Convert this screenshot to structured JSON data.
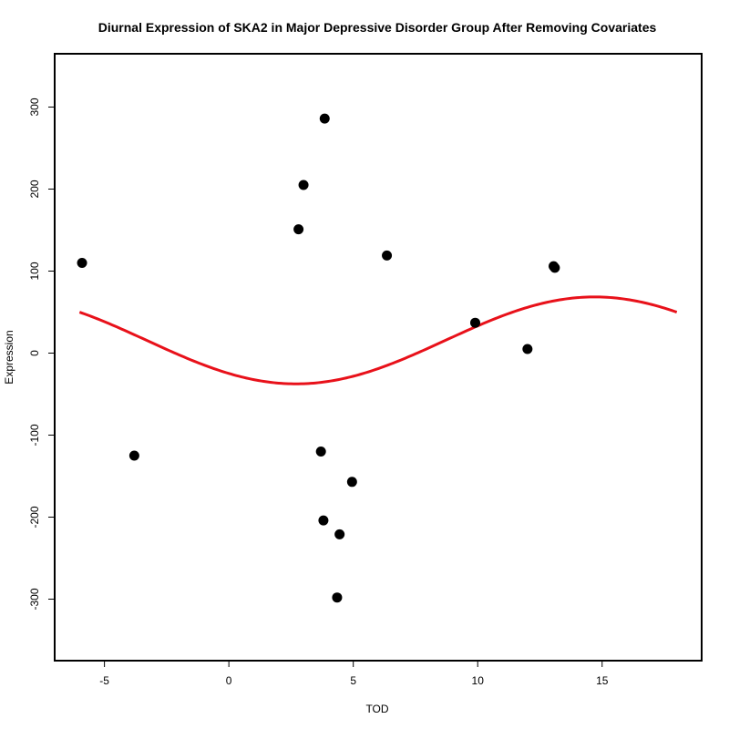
{
  "chart_data": {
    "type": "scatter",
    "title": "Diurnal Expression of SKA2 in Major Depressive Disorder Group After Removing Covariates",
    "xlabel": "TOD",
    "ylabel": "Expression",
    "xlim": [
      -7,
      19
    ],
    "ylim": [
      -375,
      365
    ],
    "xticks": [
      -5,
      0,
      5,
      10,
      15
    ],
    "yticks": [
      -300,
      -200,
      -100,
      0,
      100,
      200,
      300
    ],
    "grid": false,
    "points": [
      {
        "x": -5.9,
        "y": 110
      },
      {
        "x": -3.8,
        "y": -125
      },
      {
        "x": 2.8,
        "y": 151
      },
      {
        "x": 3.0,
        "y": 205
      },
      {
        "x": 3.7,
        "y": -120
      },
      {
        "x": 3.8,
        "y": -204
      },
      {
        "x": 3.85,
        "y": 286
      },
      {
        "x": 4.35,
        "y": -298
      },
      {
        "x": 4.45,
        "y": -221
      },
      {
        "x": 4.95,
        "y": -157
      },
      {
        "x": 6.35,
        "y": 119
      },
      {
        "x": 9.9,
        "y": 37
      },
      {
        "x": 12.0,
        "y": 5
      },
      {
        "x": 13.05,
        "y": 106
      },
      {
        "x": 13.1,
        "y": 104
      }
    ],
    "fit": {
      "type": "cosinor",
      "period": 24,
      "mesor": 15.5,
      "amplitude": 53,
      "peak_x": 14.7,
      "x_range": [
        -6,
        18
      ],
      "color": "#e8111a"
    },
    "point_color": "#000000"
  }
}
